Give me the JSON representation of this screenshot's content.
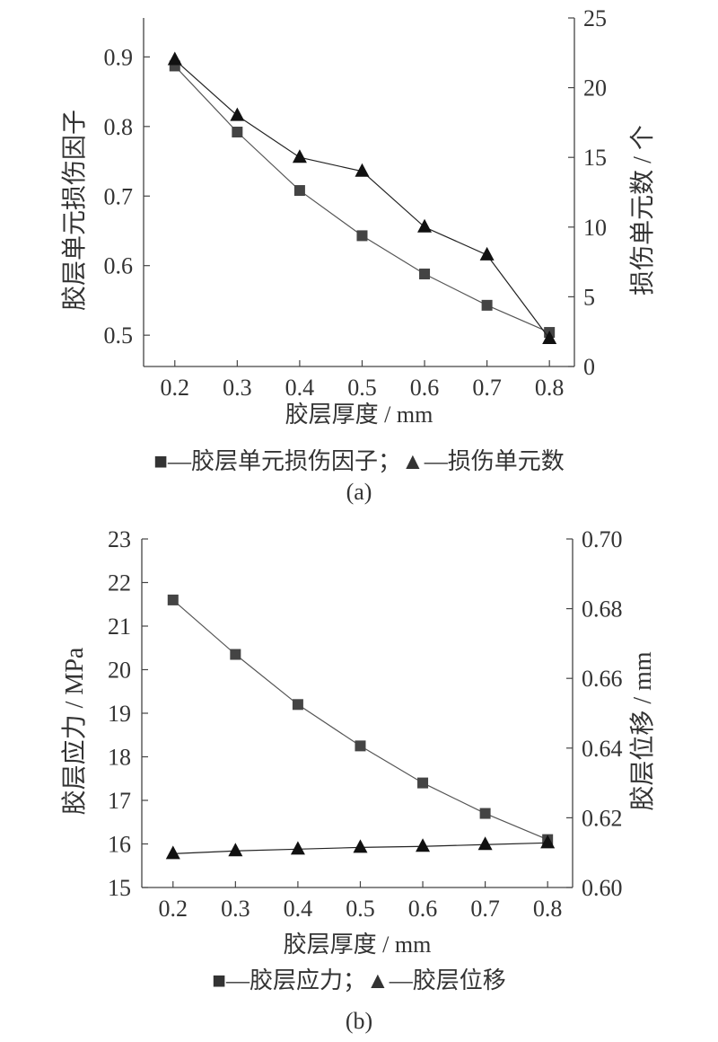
{
  "chart_data": [
    {
      "type": "line",
      "caption": "(a)",
      "xlabel": "胶层厚度 / mm",
      "ylabel": "胶层单元损伤因子",
      "y2label": "损伤单元数 / 个",
      "x": [
        0.2,
        0.3,
        0.4,
        0.5,
        0.6,
        0.7,
        0.8
      ],
      "xticks": [
        "0.2",
        "0.3",
        "0.4",
        "0.5",
        "0.6",
        "0.7",
        "0.8"
      ],
      "xlim": [
        0.15,
        0.84
      ],
      "ylim": [
        0.455,
        0.956
      ],
      "yticks": [
        "0.5",
        "0.6",
        "0.7",
        "0.8",
        "0.9"
      ],
      "y2lim": [
        0,
        25
      ],
      "y2ticks": [
        "0",
        "5",
        "10",
        "15",
        "20",
        "25"
      ],
      "legend_text": "■—胶层单元损伤因子；▲—损伤单元数",
      "series": [
        {
          "name": "胶层单元损伤因子",
          "axis": "left",
          "marker": "square",
          "values": [
            0.887,
            0.792,
            0.708,
            0.643,
            0.588,
            0.543,
            0.504
          ]
        },
        {
          "name": "损伤单元数",
          "axis": "right",
          "marker": "triangle",
          "values": [
            22,
            18,
            15,
            14,
            10,
            8,
            2
          ]
        }
      ]
    },
    {
      "type": "line",
      "caption": "(b)",
      "xlabel": "胶层厚度 / mm",
      "ylabel": "胶层应力 / MPa",
      "y2label": "胶层位移 / mm",
      "x": [
        0.2,
        0.3,
        0.4,
        0.5,
        0.6,
        0.7,
        0.8
      ],
      "xticks": [
        "0.2",
        "0.3",
        "0.4",
        "0.5",
        "0.6",
        "0.7",
        "0.8"
      ],
      "xlim": [
        0.15,
        0.84
      ],
      "ylim": [
        15,
        23
      ],
      "yticks": [
        "15",
        "16",
        "17",
        "18",
        "19",
        "20",
        "21",
        "22",
        "23"
      ],
      "y2lim": [
        0.6,
        0.7
      ],
      "y2ticks": [
        "0.60",
        "0.62",
        "0.64",
        "0.66",
        "0.68",
        "0.70"
      ],
      "legend_text": "■—胶层应力；▲—胶层位移",
      "series": [
        {
          "name": "胶层应力",
          "axis": "left",
          "marker": "square",
          "values": [
            21.6,
            20.35,
            19.2,
            18.25,
            17.4,
            16.7,
            16.1
          ]
        },
        {
          "name": "胶层位移",
          "axis": "right",
          "marker": "triangle",
          "values": [
            0.6097,
            0.6105,
            0.611,
            0.6115,
            0.6118,
            0.6123,
            0.6128
          ]
        }
      ]
    }
  ]
}
